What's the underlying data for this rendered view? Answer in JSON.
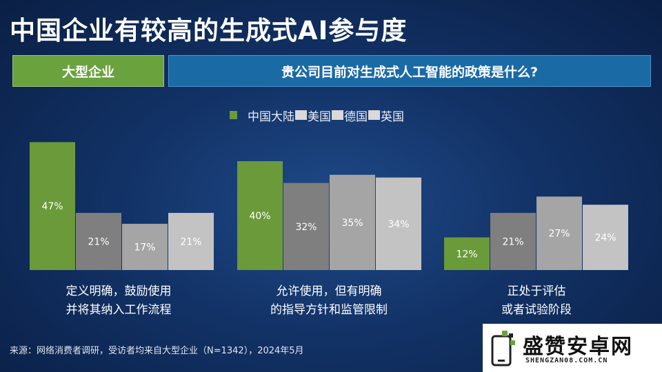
{
  "header": {
    "title": "中国企业有较高的生成式AI参与度",
    "tag": "大型企业",
    "question": "贵公司目前对生成式人工智能的政策是什么?"
  },
  "legend": {
    "items": [
      "中国大陆",
      "美国",
      "德国",
      "英国"
    ]
  },
  "colors": {
    "china": "#6b9a3a",
    "us": "#7f7f7f",
    "germany": "#a5a5a5",
    "uk": "#c3c3c3",
    "tag_bg": "#6aa23e",
    "question_bg": "#1a6aa6"
  },
  "chart_data": {
    "type": "bar",
    "categories": [
      "定义明确，鼓励使用并将其纳入工作流程",
      "允许使用，但有明确的指导方针和监管限制",
      "正处于评估或者试验阶段"
    ],
    "category_lines": [
      [
        "定义明确，鼓励使用",
        "并将其纳入工作流程"
      ],
      [
        "允许使用，但有明确",
        "的指导方针和监管限制"
      ],
      [
        "正处于评估",
        "或者试验阶段"
      ]
    ],
    "series": [
      {
        "name": "中国大陆",
        "values": [
          47,
          40,
          12
        ]
      },
      {
        "name": "美国",
        "values": [
          21,
          32,
          21
        ]
      },
      {
        "name": "德国",
        "values": [
          17,
          35,
          27
        ]
      },
      {
        "name": "英国",
        "values": [
          21,
          34,
          24
        ]
      }
    ],
    "labels": [
      [
        "47%",
        "21%",
        "17%",
        "21%"
      ],
      [
        "40%",
        "32%",
        "35%",
        "34%"
      ],
      [
        "12%",
        "21%",
        "27%",
        "24%"
      ]
    ],
    "ylim": [
      0,
      50
    ],
    "grid": false,
    "legend_position": "top-center"
  },
  "footer": {
    "source": "来源：网络消费者调研，受访者均来自大型企业（N=1342），2024年5月"
  },
  "watermark": {
    "text": "盛赞安卓网",
    "url": "SHENGZAN08.COM.CN"
  }
}
